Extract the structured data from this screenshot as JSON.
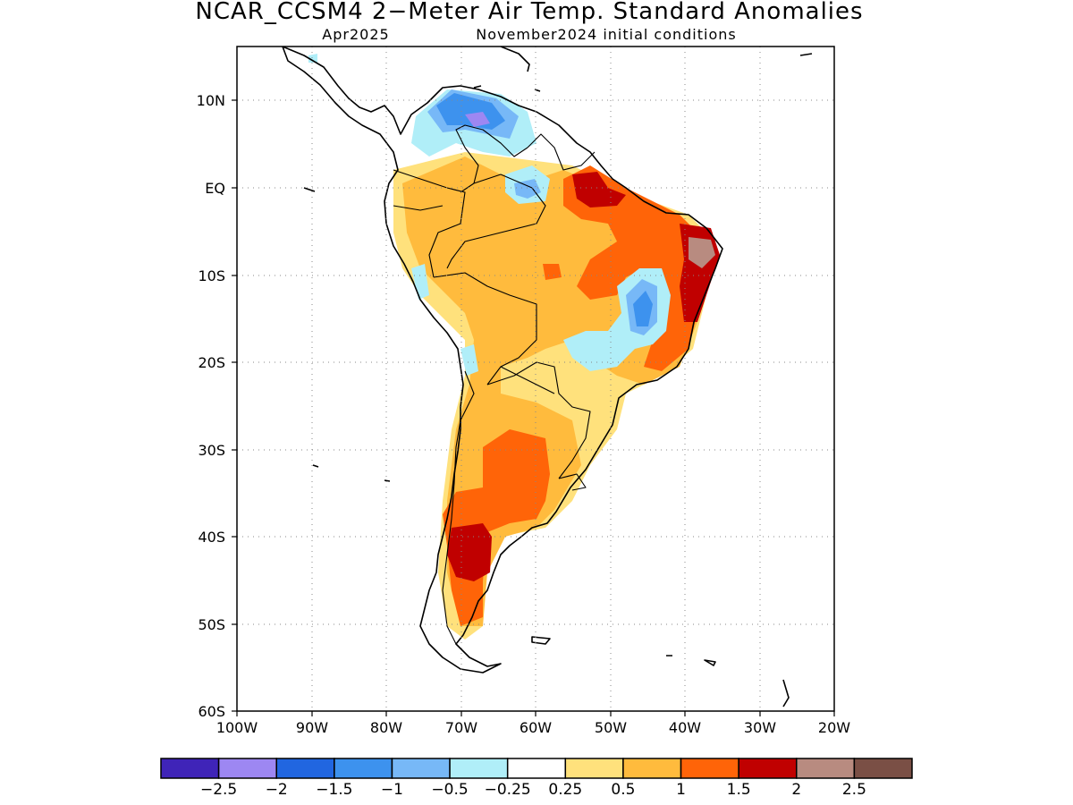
{
  "title": "NCAR_CCSM4 2−Meter Air Temp. Standard Anomalies",
  "subtitle_left": "Apr2025",
  "subtitle_right": "November2024 initial conditions",
  "map": {
    "lon_range": [
      -100,
      -20
    ],
    "lat_range": [
      -60,
      15
    ],
    "lon_ticks": [
      "100W",
      "90W",
      "80W",
      "70W",
      "60W",
      "50W",
      "40W",
      "30W",
      "20W"
    ],
    "lat_ticks": [
      "10N",
      "EQ",
      "10S",
      "20S",
      "30S",
      "40S",
      "50S",
      "60S"
    ],
    "grid": "dotted"
  },
  "colorbar": {
    "colors": [
      "#3f24b8",
      "#9d87f2",
      "#2166e0",
      "#3d92ee",
      "#77b8f7",
      "#b0eef8",
      "#ffffff",
      "#ffe17c",
      "#ffbb3d",
      "#ff6408",
      "#c00000",
      "#b88b80",
      "#7a4f45"
    ],
    "labels": [
      "−2.5",
      "−2",
      "−1.5",
      "−1",
      "−0.5",
      "−0.25",
      "0.25",
      "0.5",
      "1",
      "1.5",
      "2",
      "2.5"
    ]
  }
}
